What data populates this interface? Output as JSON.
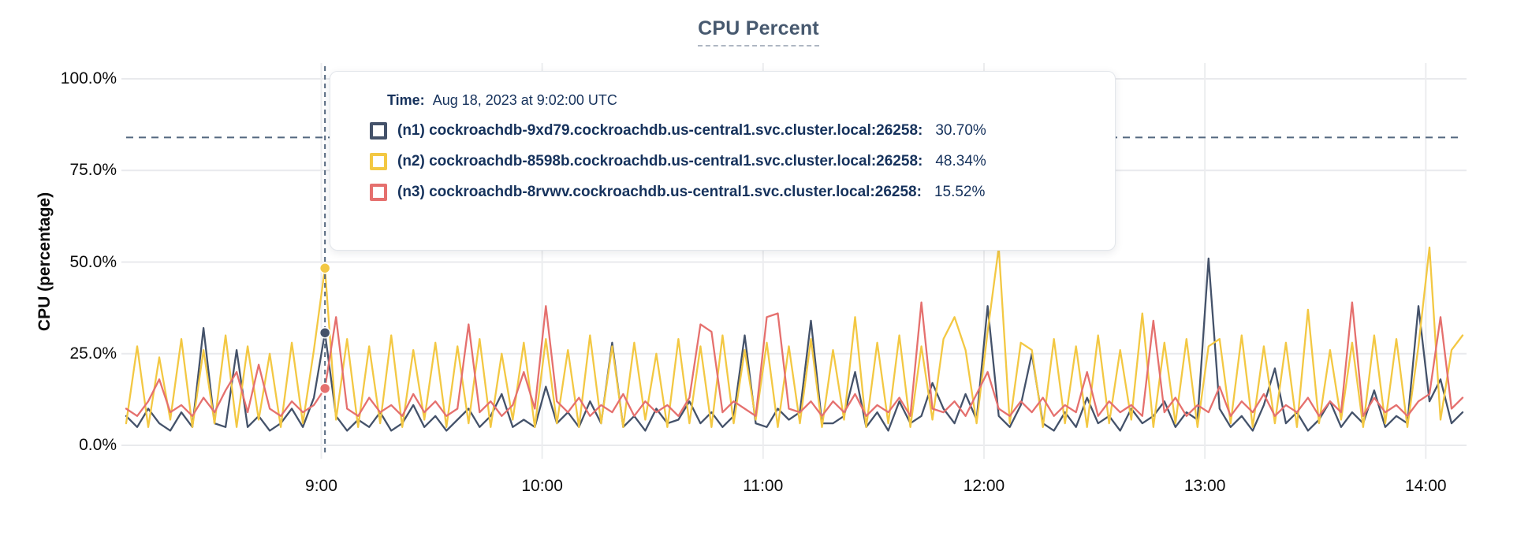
{
  "colors": {
    "series_n1": "#44526A",
    "series_n2": "#F3C843",
    "series_n3": "#E5706E",
    "grid": "#E9EAED",
    "dashed_guides": "#54687F",
    "title_text": "#47596F",
    "tooltip_text": "#16325C",
    "axis_text": "#0C0C0C"
  },
  "tooltip": {
    "time_label": "Time:",
    "time_value": "Aug 18, 2023 at 9:02:00 UTC",
    "series": [
      {
        "label": "(n1) cockroachdb-9xd79.cockroachdb.us-central1.svc.cluster.local:26258:",
        "value": "30.70%"
      },
      {
        "label": "(n2) cockroachdb-8598b.cockroachdb.us-central1.svc.cluster.local:26258:",
        "value": "48.34%"
      },
      {
        "label": "(n3) cockroachdb-8rvwv.cockroachdb.us-central1.svc.cluster.local:26258:",
        "value": "15.52%"
      }
    ]
  },
  "chart_data": {
    "type": "line",
    "title": "CPU Percent",
    "ylabel": "CPU (percentage)",
    "ylim": [
      0,
      100
    ],
    "grid": true,
    "y_ticks": [
      {
        "label": "100.0%",
        "value": 100
      },
      {
        "label": "75.0%",
        "value": 75
      },
      {
        "label": "50.0%",
        "value": 50
      },
      {
        "label": "25.0%",
        "value": 25
      },
      {
        "label": "0.0%",
        "value": 0
      }
    ],
    "x_ticks": [
      {
        "label": "9:00",
        "minutes": 540
      },
      {
        "label": "10:00",
        "minutes": 600
      },
      {
        "label": "11:00",
        "minutes": 660
      },
      {
        "label": "12:00",
        "minutes": 720
      },
      {
        "label": "13:00",
        "minutes": 780
      },
      {
        "label": "14:00",
        "minutes": 840
      }
    ],
    "x_range_minutes": [
      487,
      850
    ],
    "x_start_minutes": 487,
    "x_step_minutes": 3,
    "threshold_percent": 84,
    "cursor": {
      "minutes": 541,
      "time_label": "9:02:00",
      "markers": [
        {
          "series": "n2",
          "value": 48.34
        },
        {
          "series": "n1",
          "value": 30.7
        },
        {
          "series": "n3",
          "value": 15.52
        }
      ]
    },
    "series": [
      {
        "id": "n1",
        "name": "(n1) cockroachdb-9xd79.cockroachdb.us-central1.svc.cluster.local:26258",
        "color": "#44526A",
        "values": [
          8,
          5,
          10,
          6,
          4,
          9,
          5,
          32,
          6,
          5,
          26,
          5,
          8,
          4,
          6,
          10,
          5,
          13,
          30.7,
          8,
          4,
          7,
          5,
          9,
          4,
          6,
          11,
          5,
          8,
          4,
          7,
          10,
          5,
          8,
          14,
          5,
          7,
          5,
          16,
          6,
          9,
          5,
          12,
          6,
          28,
          5,
          8,
          4,
          10,
          6,
          7,
          12,
          6,
          9,
          5,
          8,
          30,
          6,
          5,
          10,
          7,
          9,
          34,
          6,
          6,
          8,
          20,
          5,
          9,
          4,
          12,
          6,
          8,
          17,
          10,
          6,
          14,
          7,
          38,
          8,
          5,
          11,
          25,
          6,
          4,
          9,
          5,
          13,
          6,
          8,
          4,
          10,
          6,
          8,
          12,
          5,
          9,
          7,
          51,
          10,
          5,
          8,
          4,
          11,
          21,
          6,
          9,
          4,
          7,
          12,
          5,
          9,
          6,
          15,
          5,
          8,
          6,
          38,
          12,
          18,
          6,
          9
        ]
      },
      {
        "id": "n2",
        "name": "(n2) cockroachdb-8598b.cockroachdb.us-central1.svc.cluster.local:26258",
        "color": "#F3C843",
        "values": [
          6,
          27,
          5,
          24,
          7,
          29,
          5,
          26,
          6,
          30,
          5,
          27,
          7,
          25,
          5,
          28,
          6,
          26,
          48.34,
          7,
          29,
          5,
          27,
          6,
          30,
          5,
          26,
          7,
          28,
          5,
          27,
          6,
          29,
          5,
          25,
          7,
          28,
          5,
          29,
          6,
          26,
          5,
          30,
          6,
          27,
          5,
          28,
          7,
          25,
          5,
          29,
          6,
          27,
          5,
          30,
          6,
          26,
          7,
          28,
          5,
          27,
          6,
          29,
          5,
          26,
          7,
          35,
          5,
          28,
          6,
          30,
          5,
          27,
          7,
          29,
          35,
          26,
          6,
          31,
          54,
          6,
          28,
          26,
          5,
          29,
          6,
          27,
          5,
          30,
          6,
          26,
          7,
          36,
          5,
          28,
          6,
          29,
          5,
          27,
          29,
          6,
          30,
          5,
          27,
          6,
          28,
          5,
          37,
          6,
          26,
          7,
          28,
          5,
          30,
          6,
          29,
          5,
          27,
          54,
          7,
          26,
          30
        ]
      },
      {
        "id": "n3",
        "name": "(n3) cockroachdb-8rvwv.cockroachdb.us-central1.svc.cluster.local:26258",
        "color": "#E5706E",
        "values": [
          10,
          8,
          12,
          18,
          9,
          11,
          8,
          13,
          9,
          15,
          20,
          9,
          22,
          10,
          8,
          12,
          9,
          11,
          15.52,
          35,
          10,
          8,
          13,
          9,
          11,
          8,
          14,
          9,
          12,
          8,
          10,
          33,
          9,
          12,
          8,
          11,
          20,
          10,
          38,
          12,
          9,
          13,
          8,
          11,
          9,
          14,
          8,
          12,
          9,
          11,
          8,
          13,
          33,
          31,
          9,
          12,
          10,
          8,
          35,
          36,
          10,
          9,
          12,
          8,
          12,
          9,
          14,
          8,
          11,
          9,
          13,
          8,
          39,
          10,
          9,
          12,
          8,
          14,
          20,
          10,
          8,
          12,
          9,
          13,
          8,
          11,
          9,
          20,
          8,
          12,
          9,
          11,
          8,
          34,
          9,
          13,
          8,
          11,
          9,
          16,
          8,
          12,
          9,
          14,
          8,
          11,
          9,
          13,
          8,
          12,
          9,
          39,
          8,
          13,
          9,
          11,
          8,
          12,
          14,
          35,
          10,
          13
        ]
      }
    ]
  }
}
